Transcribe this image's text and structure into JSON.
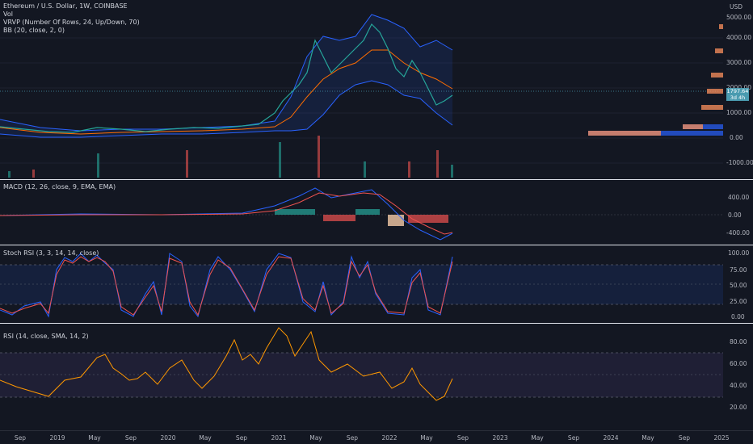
{
  "main_legend": {
    "symbol": "Ethereum / U.S. Dollar, 1W, COINBASE",
    "vol": "Vol",
    "vrvp": "VRVP (Number Of Rows, 24, Up/Down, 70)",
    "bb": "BB (20, close, 2, 0)"
  },
  "price_axis": {
    "currency": "USD",
    "ticks": [
      "5000.00",
      "4000.00",
      "3000.00",
      "2000.00",
      "1000.00",
      "0.00",
      "-1000.00"
    ],
    "price_tag": "1797.64",
    "price_tag2": "3d 4h"
  },
  "macd": {
    "legend": "MACD (12, 26, close, 9, EMA, EMA)",
    "ticks": [
      "400.00",
      "0.00",
      "-400.00"
    ]
  },
  "stoch": {
    "legend": "Stoch RSI (3, 3, 14, 14, close)",
    "ticks": [
      "100.00",
      "75.00",
      "50.00",
      "25.00",
      "0.00"
    ]
  },
  "rsi": {
    "legend": "RSI (14, close, SMA, 14, 2)",
    "ticks": [
      "80.00",
      "60.00",
      "40.00",
      "20.00"
    ]
  },
  "time_axis": [
    "Sep",
    "2019",
    "May",
    "Sep",
    "2020",
    "May",
    "Sep",
    "2021",
    "May",
    "Sep",
    "2022",
    "May",
    "Sep",
    "2023",
    "May",
    "Sep",
    "2024",
    "May",
    "Sep",
    "2025"
  ],
  "colors": {
    "background": "#131722",
    "up": "#26a69a",
    "down": "#ef5350",
    "bb_band": "#2962ff",
    "bb_basis": "#ff6d00",
    "rsi_line": "#ff9800"
  },
  "chart_data": [
    {
      "type": "line",
      "title": "Ethereum / U.S. Dollar, 1W, COINBASE",
      "ylabel": "USD",
      "ylim": [
        -1400,
        5300
      ],
      "x": [
        "2018-09",
        "2019-01",
        "2019-05",
        "2019-09",
        "2020-01",
        "2020-05",
        "2020-09",
        "2021-01",
        "2021-05",
        "2021-09",
        "2022-01",
        "2022-05",
        "2022-08"
      ],
      "series": [
        {
          "name": "close",
          "values": [
            230,
            140,
            250,
            180,
            130,
            210,
            380,
            1300,
            2700,
            3400,
            3000,
            1900,
            1797.64
          ]
        }
      ]
    },
    {
      "type": "line",
      "title": "MACD (12, 26, close, 9, EMA, EMA)",
      "ylim": [
        -500,
        500
      ],
      "x": [
        "2018-09",
        "2019-05",
        "2020-01",
        "2020-09",
        "2021-05",
        "2021-09",
        "2022-01",
        "2022-05",
        "2022-08"
      ],
      "series": [
        {
          "name": "MACD",
          "values": [
            -15,
            10,
            0,
            20,
            500,
            380,
            150,
            -380,
            -250
          ]
        },
        {
          "name": "Signal",
          "values": [
            -20,
            5,
            0,
            15,
            350,
            420,
            220,
            -250,
            -300
          ]
        }
      ]
    },
    {
      "type": "line",
      "title": "Stoch RSI (3, 3, 14, 14, close)",
      "ylim": [
        0,
        100
      ],
      "x": [
        "2018-09",
        "2019-01",
        "2019-05",
        "2019-09",
        "2020-01",
        "2020-05",
        "2020-09",
        "2021-01",
        "2021-05",
        "2021-09",
        "2022-01",
        "2022-05",
        "2022-08"
      ],
      "series": [
        {
          "name": "K",
          "values": [
            20,
            5,
            100,
            10,
            0,
            95,
            60,
            100,
            5,
            95,
            0,
            70,
            90
          ]
        }
      ]
    },
    {
      "type": "line",
      "title": "RSI (14, close, SMA, 14, 2)",
      "ylim": [
        10,
        92
      ],
      "x": [
        "2018-09",
        "2019-01",
        "2019-05",
        "2019-09",
        "2020-01",
        "2020-05",
        "2020-09",
        "2021-01",
        "2021-05",
        "2021-09",
        "2022-01",
        "2022-05",
        "2022-08"
      ],
      "series": [
        {
          "name": "RSI",
          "values": [
            35,
            30,
            68,
            38,
            40,
            60,
            55,
            90,
            50,
            75,
            45,
            28,
            46
          ]
        }
      ]
    }
  ]
}
